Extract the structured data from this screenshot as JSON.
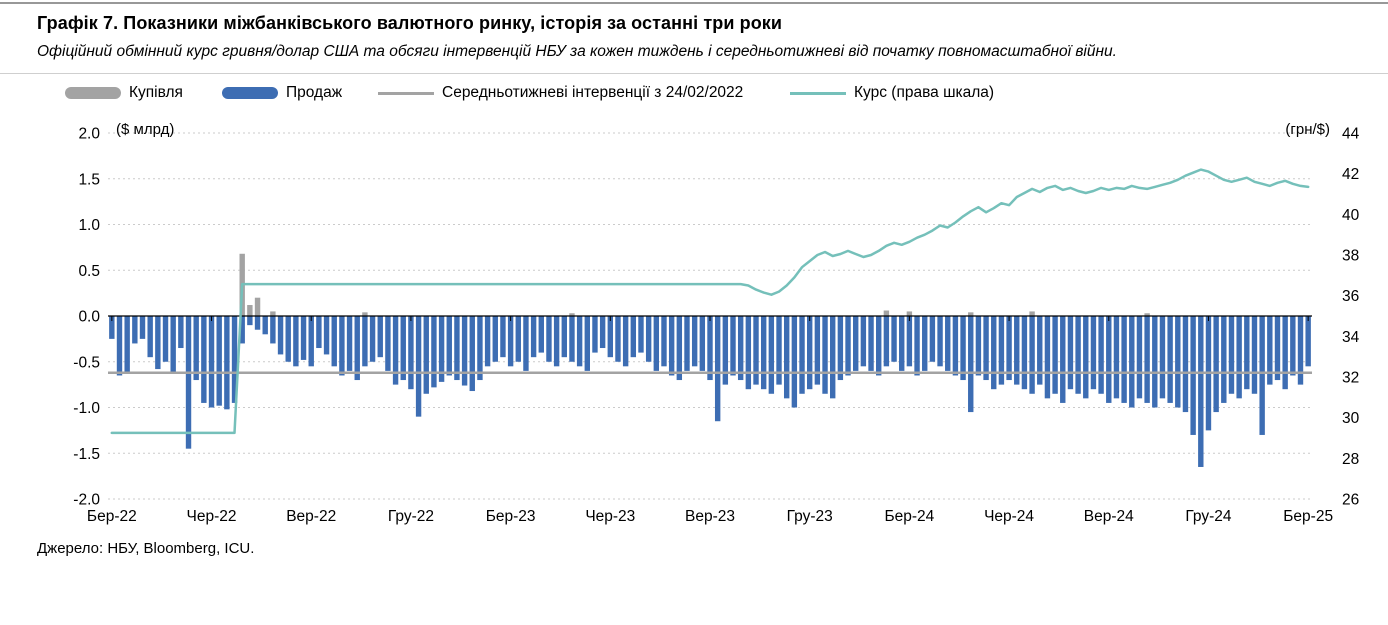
{
  "header": {
    "title": "Графік 7. Показники міжбанківського валютного ринку, історія за останні три роки",
    "subtitle": "Офіційний обмінний курс гривня/долар США та обсяги інтервенцій НБУ за кожен тиждень і середньотижневі від початку повномасштабної війни."
  },
  "legend": [
    {
      "label": "Купівля",
      "type": "bar",
      "color": "#a3a3a3"
    },
    {
      "label": "Продаж",
      "type": "bar",
      "color": "#3d6db3"
    },
    {
      "label": "Середньотижневі інтервенції з 24/02/2022",
      "type": "line",
      "color": "#a3a3a3"
    },
    {
      "label": "Курс (права шкала)",
      "type": "line",
      "color": "#75c0ba"
    }
  ],
  "footer": {
    "source": "Джерело: НБУ, Bloomberg, ICU."
  },
  "chart_data": {
    "type": "bar+line",
    "title": "Графік 7. Показники міжбанківського валютного ринку, історія за останні три роки",
    "grid": "dashed-horizontal",
    "legend_position": "top",
    "left_axis": {
      "unit": "($ млрд)",
      "min": -2.0,
      "max": 2.0,
      "step": 0.5,
      "tick_values": [
        2,
        1.5,
        1,
        0.5,
        0,
        -0.5,
        -1,
        -1.5,
        -2
      ],
      "tick_labels": [
        "2.0",
        "1.5",
        "1.0",
        "0.5",
        "0.0",
        "-0.5",
        "-1.0",
        "-1.5",
        "-2.0"
      ]
    },
    "right_axis": {
      "unit": "(грн/$)",
      "min": 26,
      "max": 44,
      "step": 2,
      "tick_values": [
        44,
        42,
        40,
        38,
        36,
        34,
        32,
        30,
        28,
        26
      ]
    },
    "x_ticks": [
      "Бер-22",
      "Чер-22",
      "Вер-22",
      "Гру-22",
      "Бер-23",
      "Чер-23",
      "Вер-23",
      "Гру-23",
      "Бер-24",
      "Чер-24",
      "Вер-24",
      "Гру-24",
      "Бер-25"
    ],
    "x_tick_weeks": [
      0,
      13,
      26,
      39,
      52,
      65,
      78,
      91,
      104,
      117,
      130,
      143,
      156
    ],
    "weeks": 157,
    "series": [
      {
        "name": "Купівля",
        "type": "bar",
        "axis": "left",
        "color": "#a3a3a3",
        "values_sparse": {
          "17": 0.68,
          "18": 0.12,
          "19": 0.2,
          "21": 0.05,
          "33": 0.04,
          "60": 0.03,
          "101": 0.06,
          "104": 0.05,
          "112": 0.04,
          "120": 0.05,
          "135": 0.03
        }
      },
      {
        "name": "Продаж",
        "type": "bar",
        "axis": "left",
        "color": "#3d6db3",
        "values": [
          -0.25,
          -0.65,
          -0.62,
          -0.3,
          -0.25,
          -0.45,
          -0.58,
          -0.5,
          -0.62,
          -0.35,
          -1.45,
          -0.7,
          -0.95,
          -1.0,
          -0.98,
          -1.02,
          -0.95,
          -0.3,
          -0.1,
          -0.15,
          -0.2,
          -0.3,
          -0.42,
          -0.5,
          -0.55,
          -0.48,
          -0.55,
          -0.35,
          -0.42,
          -0.55,
          -0.65,
          -0.6,
          -0.7,
          -0.55,
          -0.5,
          -0.45,
          -0.6,
          -0.75,
          -0.7,
          -0.8,
          -1.1,
          -0.85,
          -0.78,
          -0.72,
          -0.65,
          -0.7,
          -0.76,
          -0.82,
          -0.7,
          -0.55,
          -0.5,
          -0.45,
          -0.55,
          -0.5,
          -0.6,
          -0.45,
          -0.4,
          -0.5,
          -0.55,
          -0.45,
          -0.5,
          -0.55,
          -0.6,
          -0.4,
          -0.35,
          -0.45,
          -0.5,
          -0.55,
          -0.45,
          -0.4,
          -0.5,
          -0.6,
          -0.55,
          -0.65,
          -0.7,
          -0.6,
          -0.55,
          -0.6,
          -0.7,
          -1.15,
          -0.75,
          -0.65,
          -0.7,
          -0.8,
          -0.75,
          -0.8,
          -0.85,
          -0.75,
          -0.9,
          -1.0,
          -0.85,
          -0.8,
          -0.75,
          -0.85,
          -0.9,
          -0.7,
          -0.65,
          -0.6,
          -0.55,
          -0.6,
          -0.65,
          -0.55,
          -0.5,
          -0.6,
          -0.55,
          -0.65,
          -0.6,
          -0.5,
          -0.55,
          -0.6,
          -0.65,
          -0.7,
          -1.05,
          -0.65,
          -0.7,
          -0.8,
          -0.75,
          -0.7,
          -0.75,
          -0.8,
          -0.85,
          -0.75,
          -0.9,
          -0.85,
          -0.95,
          -0.8,
          -0.85,
          -0.9,
          -0.8,
          -0.85,
          -0.95,
          -0.9,
          -0.95,
          -1.0,
          -0.9,
          -0.95,
          -1.0,
          -0.9,
          -0.95,
          -1.0,
          -1.05,
          -1.3,
          -1.65,
          -1.25,
          -1.05,
          -0.95,
          -0.85,
          -0.9,
          -0.8,
          -0.85,
          -1.3,
          -0.75,
          -0.7,
          -0.8,
          -0.65,
          -0.75,
          -0.55
        ]
      },
      {
        "name": "Середньотижневі інтервенції з 24/02/2022",
        "type": "hline",
        "axis": "left",
        "color": "#a3a3a3",
        "value": -0.62
      },
      {
        "name": "Курс (права шкала)",
        "type": "line",
        "axis": "right",
        "color": "#75c0ba",
        "values": [
          29.25,
          29.25,
          29.25,
          29.25,
          29.25,
          29.25,
          29.25,
          29.25,
          29.25,
          29.25,
          29.25,
          29.25,
          29.25,
          29.25,
          29.25,
          29.25,
          29.25,
          36.57,
          36.57,
          36.57,
          36.57,
          36.57,
          36.57,
          36.57,
          36.57,
          36.57,
          36.57,
          36.57,
          36.57,
          36.57,
          36.57,
          36.57,
          36.57,
          36.57,
          36.57,
          36.57,
          36.57,
          36.57,
          36.57,
          36.57,
          36.57,
          36.57,
          36.57,
          36.57,
          36.57,
          36.57,
          36.57,
          36.57,
          36.57,
          36.57,
          36.57,
          36.57,
          36.57,
          36.57,
          36.57,
          36.57,
          36.57,
          36.57,
          36.57,
          36.57,
          36.57,
          36.57,
          36.57,
          36.57,
          36.57,
          36.57,
          36.57,
          36.57,
          36.57,
          36.57,
          36.57,
          36.57,
          36.57,
          36.57,
          36.57,
          36.57,
          36.57,
          36.57,
          36.57,
          36.57,
          36.57,
          36.57,
          36.57,
          36.5,
          36.3,
          36.15,
          36.05,
          36.2,
          36.5,
          36.9,
          37.4,
          37.7,
          38.0,
          38.15,
          37.95,
          38.05,
          38.2,
          38.05,
          37.9,
          38.0,
          38.2,
          38.45,
          38.6,
          38.5,
          38.65,
          38.85,
          39.0,
          39.2,
          39.45,
          39.35,
          39.6,
          39.9,
          40.15,
          40.35,
          40.1,
          40.3,
          40.55,
          40.45,
          40.85,
          41.05,
          41.25,
          41.1,
          41.3,
          41.4,
          41.2,
          41.3,
          41.15,
          41.05,
          41.15,
          41.3,
          41.2,
          41.3,
          41.25,
          41.4,
          41.3,
          41.25,
          41.35,
          41.45,
          41.55,
          41.7,
          41.9,
          42.05,
          42.2,
          42.1,
          41.9,
          41.7,
          41.6,
          41.7,
          41.8,
          41.6,
          41.5,
          41.4,
          41.55,
          41.65,
          41.5,
          41.4,
          41.35
        ]
      }
    ]
  }
}
